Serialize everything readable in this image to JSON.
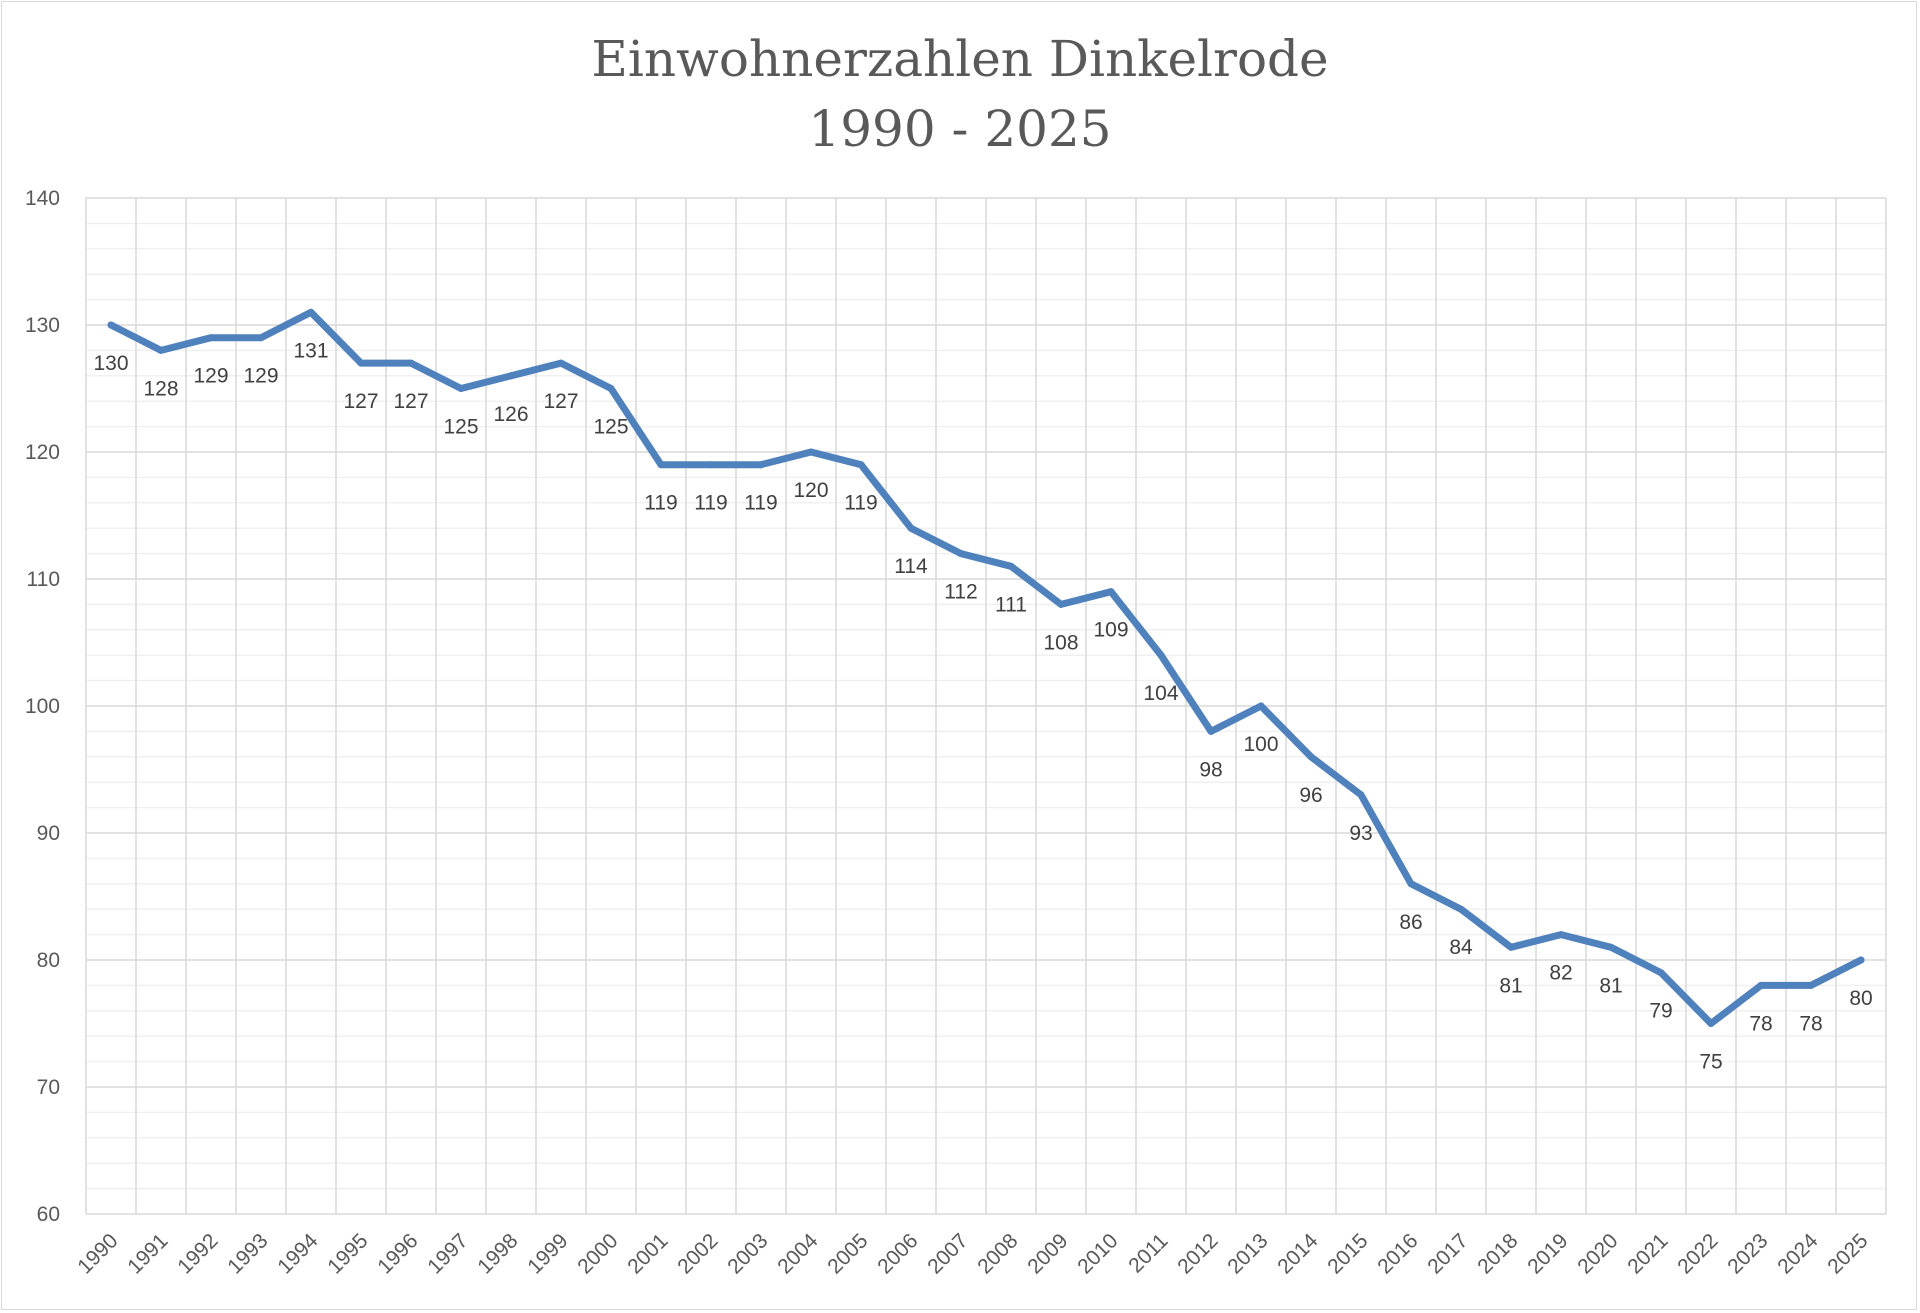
{
  "chart_data": {
    "type": "line",
    "title": [
      "Einwohnerzahlen Dinkelrode",
      "1990 - 2025"
    ],
    "categories": [
      "1990",
      "1991",
      "1992",
      "1993",
      "1994",
      "1995",
      "1996",
      "1997",
      "1998",
      "1999",
      "2000",
      "2001",
      "2002",
      "2003",
      "2004",
      "2005",
      "2006",
      "2007",
      "2008",
      "2009",
      "2010",
      "2011",
      "2012",
      "2013",
      "2014",
      "2015",
      "2016",
      "2017",
      "2018",
      "2019",
      "2020",
      "2021",
      "2022",
      "2023",
      "2024",
      "2025"
    ],
    "values": [
      130,
      128,
      129,
      129,
      131,
      127,
      127,
      125,
      126,
      127,
      125,
      119,
      119,
      119,
      120,
      119,
      114,
      112,
      111,
      108,
      109,
      104,
      98,
      100,
      96,
      93,
      86,
      84,
      81,
      82,
      81,
      79,
      75,
      78,
      78,
      80
    ],
    "ylim": [
      60,
      140
    ],
    "yticks": [
      60,
      70,
      80,
      90,
      100,
      110,
      120,
      130,
      140
    ],
    "grid": "major and minor",
    "data_labels": true,
    "line_color": "#4F81BD",
    "xlabel": "",
    "ylabel": ""
  }
}
